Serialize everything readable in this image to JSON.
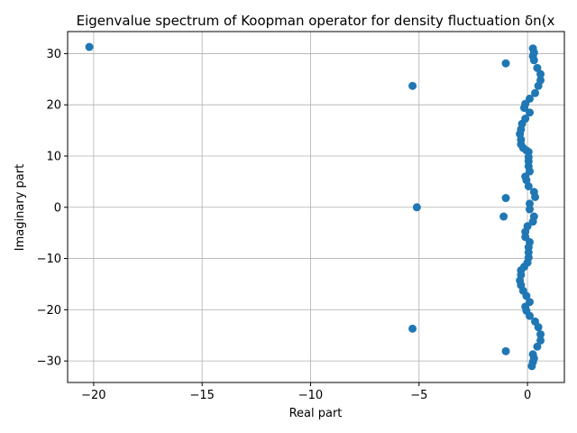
{
  "chart_data": {
    "type": "scatter",
    "title": "Eigenvalue spectrum of Koopman operator for density fluctuation δn(x",
    "xlabel": "Real part",
    "ylabel": "Imaginary part",
    "xlim": [
      -21.2,
      1.7
    ],
    "ylim": [
      -34.2,
      34.3
    ],
    "xticks": [
      -20,
      -15,
      -10,
      -5,
      0
    ],
    "xtick_labels": [
      "−20",
      "−15",
      "−10",
      "−5",
      "0"
    ],
    "yticks": [
      -30,
      -20,
      -10,
      0,
      10,
      20,
      30
    ],
    "ytick_labels": [
      "−30",
      "−20",
      "−10",
      "0",
      "10",
      "20",
      "30"
    ],
    "grid": true,
    "marker_color": "#1f77b4",
    "series": [
      {
        "points": [
          [
            -20.2,
            31.3
          ],
          [
            -1.0,
            28.1
          ],
          [
            -5.3,
            23.7
          ],
          [
            -5.1,
            0.0
          ],
          [
            -1.0,
            1.8
          ],
          [
            0.25,
            31.0
          ],
          [
            0.3,
            30.2
          ],
          [
            0.25,
            29.5
          ],
          [
            0.3,
            28.7
          ],
          [
            0.45,
            27.2
          ],
          [
            0.6,
            26.0
          ],
          [
            0.6,
            24.8
          ],
          [
            0.5,
            23.7
          ],
          [
            0.35,
            22.3
          ],
          [
            0.1,
            21.2
          ],
          [
            -0.1,
            20.2
          ],
          [
            -0.15,
            19.4
          ],
          [
            0.1,
            18.5
          ],
          [
            -0.1,
            17.3
          ],
          [
            -0.25,
            16.3
          ],
          [
            -0.3,
            15.2
          ],
          [
            -0.35,
            14.3
          ],
          [
            -0.3,
            13.2
          ],
          [
            -0.3,
            12.3
          ],
          [
            -0.2,
            11.6
          ],
          [
            -0.05,
            11.1
          ],
          [
            0.05,
            10.8
          ],
          [
            0.05,
            9.8
          ],
          [
            0.05,
            9.0
          ],
          [
            0.05,
            8.0
          ],
          [
            0.1,
            7.0
          ],
          [
            -0.1,
            6.0
          ],
          [
            -0.05,
            5.3
          ],
          [
            0.05,
            4.1
          ],
          [
            0.3,
            3.0
          ],
          [
            0.35,
            2.0
          ],
          [
            0.1,
            0.7
          ],
          [
            0.1,
            -0.4
          ],
          [
            0.3,
            -1.8
          ],
          [
            0.25,
            -2.8
          ],
          [
            0.0,
            -3.7
          ],
          [
            -0.1,
            -4.8
          ],
          [
            -0.1,
            -5.8
          ],
          [
            0.1,
            -6.8
          ],
          [
            0.05,
            -7.8
          ],
          [
            0.05,
            -8.8
          ],
          [
            0.05,
            -9.8
          ],
          [
            0.0,
            -10.8
          ],
          [
            -0.15,
            -11.6
          ],
          [
            -0.3,
            -12.3
          ],
          [
            -0.3,
            -13.2
          ],
          [
            -0.35,
            -14.3
          ],
          [
            -0.3,
            -15.2
          ],
          [
            -0.2,
            -16.3
          ],
          [
            -0.05,
            -17.3
          ],
          [
            0.1,
            -18.5
          ],
          [
            -0.1,
            -19.4
          ],
          [
            -0.05,
            -20.2
          ],
          [
            0.1,
            -21.2
          ],
          [
            0.35,
            -22.3
          ],
          [
            0.5,
            -23.4
          ],
          [
            0.6,
            -24.8
          ],
          [
            0.6,
            -26.0
          ],
          [
            0.45,
            -27.2
          ],
          [
            0.25,
            -28.7
          ],
          [
            0.3,
            -29.5
          ],
          [
            0.25,
            -30.2
          ],
          [
            0.2,
            -31.0
          ],
          [
            -5.3,
            -23.7
          ],
          [
            -1.0,
            -28.1
          ],
          [
            -1.1,
            -1.8
          ]
        ]
      }
    ]
  }
}
